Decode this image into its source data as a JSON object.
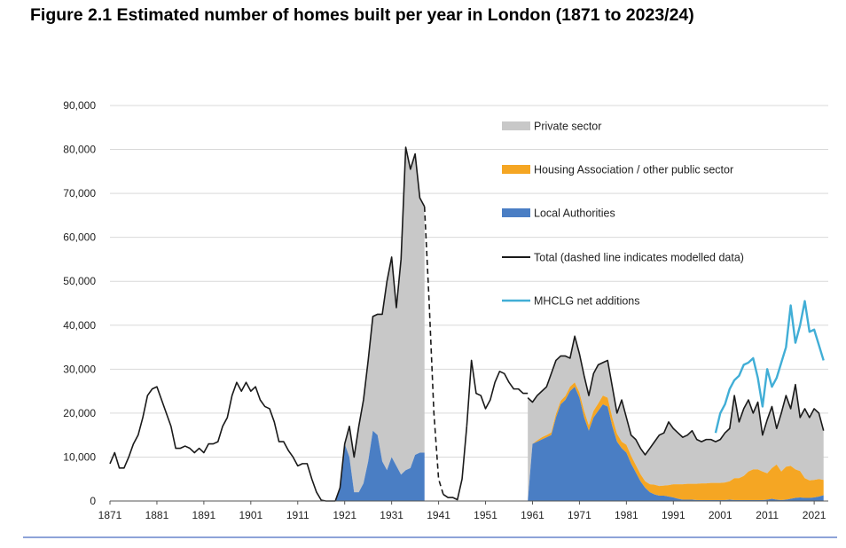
{
  "title": "Figure 2.1  Estimated number of homes built per year in London (1871 to 2023/24)",
  "colors": {
    "private": "#c8c8c8",
    "ha": "#f5a623",
    "la": "#4a7ec4",
    "total": "#1a1a1a",
    "mhclg": "#41aed6",
    "grid": "#d9d9d9",
    "rule": "#8ea3d8"
  },
  "chart_data": {
    "type": "area",
    "title": "Figure 2.1  Estimated number of homes built per year in London (1871 to 2023/24)",
    "xlabel": "",
    "ylabel": "",
    "xlim": [
      1871,
      2024
    ],
    "ylim": [
      0,
      90000
    ],
    "grid": true,
    "legend_position": "top-right",
    "x_ticks": [
      "1871",
      "1881",
      "1891",
      "1901",
      "1911",
      "1921",
      "1931",
      "1941",
      "1951",
      "1961",
      "1971",
      "1981",
      "1991",
      "2001",
      "2011",
      "2021"
    ],
    "y_ticks": [
      "0",
      "10,000",
      "20,000",
      "30,000",
      "40,000",
      "50,000",
      "60,000",
      "70,000",
      "80,000",
      "90,000"
    ],
    "legend": [
      {
        "key": "private",
        "label": "Private sector",
        "style": "area"
      },
      {
        "key": "ha",
        "label": "Housing Association / other public sector",
        "style": "area"
      },
      {
        "key": "la",
        "label": "Local Authorities",
        "style": "area"
      },
      {
        "key": "total",
        "label": "Total (dashed line indicates modelled data)",
        "style": "line"
      },
      {
        "key": "mhclg",
        "label": "MHCLG net additions",
        "style": "line"
      }
    ],
    "total_pre1920": {
      "x": [
        1871,
        1872,
        1873,
        1874,
        1875,
        1876,
        1877,
        1878,
        1879,
        1880,
        1881,
        1882,
        1883,
        1884,
        1885,
        1886,
        1887,
        1888,
        1889,
        1890,
        1891,
        1892,
        1893,
        1894,
        1895,
        1896,
        1897,
        1898,
        1899,
        1900,
        1901,
        1902,
        1903,
        1904,
        1905,
        1906,
        1907,
        1908,
        1909,
        1910,
        1911,
        1912,
        1913,
        1914,
        1915,
        1916,
        1917,
        1918,
        1919
      ],
      "values": [
        8500,
        11000,
        7500,
        7500,
        10000,
        13000,
        15000,
        19000,
        24000,
        25500,
        26000,
        23000,
        20000,
        17000,
        12000,
        12000,
        12500,
        12000,
        11000,
        12000,
        11000,
        13000,
        13000,
        13500,
        17000,
        19000,
        24000,
        27000,
        25000,
        27000,
        25000,
        26000,
        23000,
        21500,
        21000,
        18000,
        13500,
        13500,
        11500,
        10000,
        8000,
        8500,
        8500,
        5000,
        2000,
        200,
        0,
        0,
        0
      ]
    },
    "interwar": {
      "x": [
        1919,
        1920,
        1921,
        1922,
        1923,
        1924,
        1925,
        1926,
        1927,
        1928,
        1929,
        1930,
        1931,
        1932,
        1933,
        1934,
        1935,
        1936,
        1937,
        1938
      ],
      "total": [
        0,
        3000,
        13000,
        17000,
        10000,
        17000,
        23000,
        32000,
        42000,
        42500,
        42500,
        50000,
        55500,
        44000,
        55000,
        80500,
        75500,
        79000,
        69000,
        67000
      ],
      "local_authorities": [
        0,
        3000,
        13000,
        10000,
        2000,
        2000,
        4000,
        9000,
        16000,
        15000,
        9000,
        7000,
        10000,
        8000,
        6000,
        7000,
        7500,
        10500,
        11000,
        11000
      ]
    },
    "total_modelled": {
      "x": [
        1938,
        1939,
        1940,
        1941,
        1942
      ],
      "values": [
        67000,
        45000,
        20000,
        5000,
        1500
      ]
    },
    "total_war_postwar": {
      "x": [
        1942,
        1943,
        1944,
        1945,
        1946,
        1947
      ],
      "values": [
        1500,
        800,
        800,
        300,
        5000,
        17000
      ]
    },
    "total_postwar": {
      "x": [
        1947,
        1948,
        1949,
        1950,
        1951,
        1952,
        1953,
        1954,
        1955,
        1956,
        1957,
        1958,
        1959,
        1960
      ],
      "values": [
        17000,
        32000,
        24500,
        24000,
        21000,
        23000,
        27000,
        29500,
        29000,
        27000,
        25500,
        25500,
        24500,
        24500
      ]
    },
    "post1960": {
      "x": [
        1960,
        1961,
        1962,
        1963,
        1964,
        1965,
        1966,
        1967,
        1968,
        1969,
        1970,
        1971,
        1972,
        1973,
        1974,
        1975,
        1976,
        1977,
        1978,
        1979,
        1980,
        1981,
        1982,
        1983,
        1984,
        1985,
        1986,
        1987,
        1988,
        1989,
        1990,
        1991,
        1992,
        1993,
        1994,
        1995,
        1996,
        1997,
        1998,
        1999,
        2000,
        2001,
        2002,
        2003,
        2004,
        2005,
        2006,
        2007,
        2008,
        2009,
        2010,
        2011,
        2012,
        2013,
        2014,
        2015,
        2016,
        2017,
        2018,
        2019,
        2020,
        2021,
        2022,
        2023
      ],
      "total": [
        23500,
        22500,
        24000,
        25000,
        26000,
        29000,
        32000,
        33000,
        33000,
        32500,
        37500,
        33500,
        28500,
        24000,
        29000,
        31000,
        31500,
        32000,
        26000,
        20000,
        23000,
        19000,
        15000,
        14000,
        12000,
        10500,
        12000,
        13500,
        15000,
        15500,
        18000,
        16500,
        15500,
        14500,
        15000,
        16000,
        14000,
        13500,
        14000,
        14000,
        13500,
        14000,
        15500,
        16500,
        24000,
        18000,
        21000,
        23000,
        20000,
        22500,
        15000,
        18500,
        21500,
        16500,
        20000,
        24000,
        21000,
        26500,
        19000,
        21000,
        19000,
        21000,
        20000,
        16000
      ],
      "ha": [
        0,
        0,
        300,
        500,
        500,
        600,
        800,
        800,
        900,
        1000,
        1000,
        1200,
        1500,
        1200,
        1500,
        1700,
        2000,
        2000,
        2000,
        1800,
        1500,
        1800,
        1800,
        1700,
        1600,
        1500,
        1800,
        2200,
        2200,
        2300,
        2600,
        3000,
        3300,
        3500,
        3600,
        3600,
        3700,
        3800,
        3800,
        3900,
        3900,
        3900,
        4000,
        4200,
        5000,
        5000,
        5500,
        6500,
        7000,
        7000,
        6500,
        6000,
        7000,
        8000,
        6500,
        7500,
        7500,
        6500,
        6000,
        4500,
        4000,
        4000,
        4000,
        3500
      ],
      "local_authorities": [
        0,
        13000,
        13500,
        14000,
        14500,
        15000,
        19000,
        22000,
        23000,
        25000,
        26000,
        23500,
        19000,
        16000,
        19000,
        20500,
        22000,
        21500,
        17000,
        13500,
        12000,
        11000,
        8500,
        6500,
        4500,
        3000,
        2000,
        1500,
        1200,
        1200,
        1000,
        800,
        500,
        300,
        300,
        300,
        200,
        200,
        200,
        200,
        200,
        200,
        200,
        300,
        200,
        200,
        200,
        200,
        200,
        200,
        200,
        300,
        500,
        300,
        200,
        300,
        500,
        700,
        800,
        700,
        700,
        800,
        1000,
        1300
      ]
    },
    "mhclg": {
      "x": [
        2000,
        2001,
        2002,
        2003,
        2004,
        2005,
        2006,
        2007,
        2008,
        2009,
        2010,
        2011,
        2012,
        2013,
        2014,
        2015,
        2016,
        2017,
        2018,
        2019,
        2020,
        2021,
        2022,
        2023
      ],
      "values": [
        15500,
        20000,
        22000,
        25500,
        27500,
        28500,
        31000,
        31500,
        32500,
        28000,
        21500,
        30000,
        26000,
        28000,
        31500,
        35000,
        44500,
        36000,
        40000,
        45500,
        38500,
        39000,
        35500,
        32000
      ]
    }
  }
}
